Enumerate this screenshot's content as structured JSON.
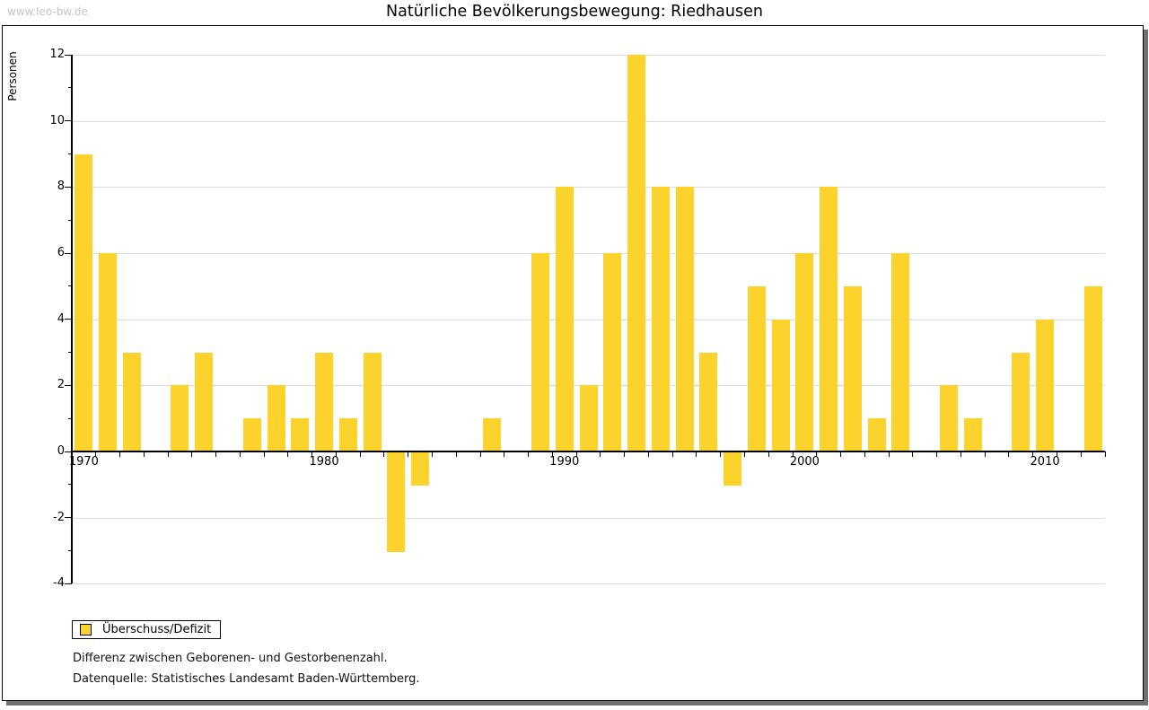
{
  "watermark": "www.leo-bw.de",
  "title": "Natürliche Bevölkerungsbewegung: Riedhausen",
  "legend": {
    "label": "Überschuss/Defizit",
    "swatch_color": "#fcd32c"
  },
  "footnotes": [
    "Differenz zwischen Geborenen- und Gestorbenenzahl.",
    "Datenquelle: Statistisches Landesamt Baden-Württemberg."
  ],
  "colors": {
    "bar": "#fcd32c",
    "grid": "#dbdbdb",
    "axis": "#000000",
    "frame_shadow": "#707070",
    "watermark": "#c5c5c5"
  },
  "chart_data": {
    "type": "bar",
    "title": "Natürliche Bevölkerungsbewegung: Riedhausen",
    "xlabel": "",
    "ylabel": "Personen",
    "series_name": "Überschuss/Defizit",
    "categories": [
      1970,
      1971,
      1972,
      1973,
      1974,
      1975,
      1976,
      1977,
      1978,
      1979,
      1980,
      1981,
      1982,
      1983,
      1984,
      1985,
      1986,
      1987,
      1988,
      1989,
      1990,
      1991,
      1992,
      1993,
      1994,
      1995,
      1996,
      1997,
      1998,
      1999,
      2000,
      2001,
      2002,
      2003,
      2004,
      2005,
      2006,
      2007,
      2008,
      2009,
      2010,
      2011,
      2012
    ],
    "values": [
      9,
      6,
      3,
      0,
      2,
      3,
      0,
      1,
      2,
      1,
      3,
      1,
      3,
      -3,
      -1,
      0,
      0,
      1,
      0,
      6,
      8,
      2,
      6,
      12,
      8,
      8,
      3,
      -1,
      5,
      4,
      6,
      8,
      5,
      1,
      6,
      0,
      2,
      1,
      0,
      3,
      4,
      0,
      5
    ],
    "ylim": [
      -4,
      12
    ],
    "ytick_major_step": 2,
    "ytick_minor_step": 1,
    "xtick_labels": [
      1970,
      1980,
      1990,
      2000,
      2010
    ],
    "grid": true,
    "legend_position": "bottom-left"
  }
}
